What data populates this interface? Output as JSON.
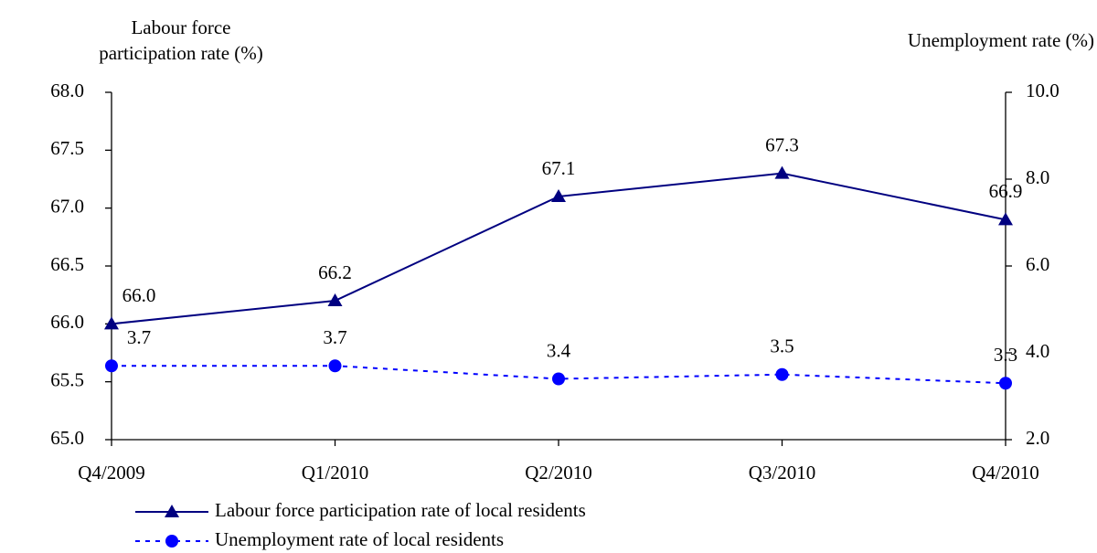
{
  "chart_data": {
    "type": "line",
    "y_label": [
      "Labour force",
      "participation rate (%)"
    ],
    "y2_label": "Unemployment rate (%)",
    "categories": [
      "Q4/2009",
      "Q1/2010",
      "Q2/2010",
      "Q3/2010",
      "Q4/2010"
    ],
    "series": [
      {
        "name": "Labour force participation rate of local residents",
        "color": "#000080",
        "marker": "triangle",
        "dash": "solid",
        "values": [
          66.0,
          66.2,
          67.1,
          67.3,
          66.9
        ],
        "value_labels": [
          "66.0",
          "66.2",
          "67.1",
          "67.3",
          "66.9"
        ]
      },
      {
        "name": "Unemployment rate of local residents",
        "color": "#0000ff",
        "marker": "circle",
        "dash": "dotted",
        "axis": "y2",
        "values": [
          3.7,
          3.7,
          3.4,
          3.5,
          3.3
        ]
      }
    ],
    "ylim": [
      65,
      68
    ],
    "yticks": [
      {
        "value": 65,
        "label": "65.0"
      },
      65.5,
      {
        "value": 66,
        "label": "66.0"
      },
      66.5,
      {
        "value": 67,
        "label": "67.0"
      },
      67.5,
      {
        "value": 68,
        "label": "68.0"
      }
    ],
    "y2lim": [
      2,
      10
    ],
    "y2ticks": [
      {
        "value": 2,
        "label": "2.0"
      },
      {
        "value": 4,
        "label": "4.0"
      },
      {
        "value": 6,
        "label": "6.0"
      },
      {
        "value": 8,
        "label": "8.0"
      },
      {
        "value": 10,
        "label": "10.0"
      }
    ],
    "grid": false
  }
}
